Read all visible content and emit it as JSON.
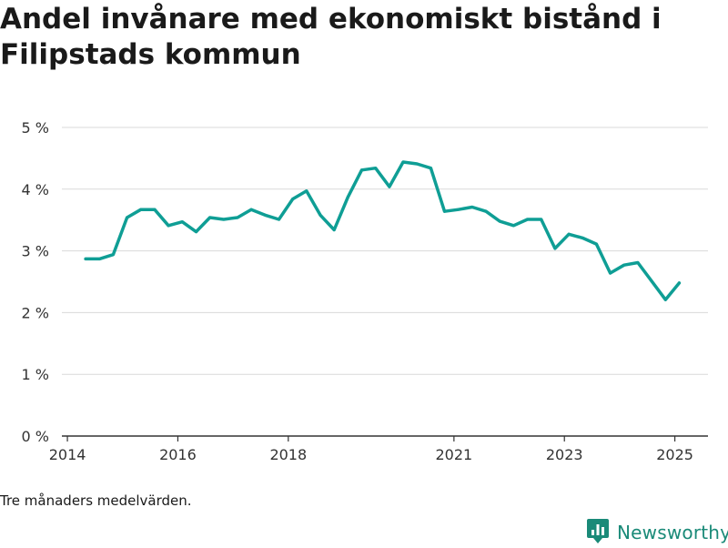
{
  "title": "Andel invånare med ekonomiskt bistånd i Filipstads kommun",
  "note": "Tre månaders medelvärden.",
  "brand": {
    "name": "Newsworthy",
    "icon": "newsworthy-logo-icon",
    "color": "#1a8a78"
  },
  "colors": {
    "line": "#0f9e95",
    "grid": "#d9d9d9",
    "axis": "#333333"
  },
  "chart_data": {
    "type": "line",
    "title": "Andel invånare med ekonomiskt bistånd i Filipstads kommun",
    "xlabel": "",
    "ylabel": "",
    "ylim": [
      0,
      5
    ],
    "y_ticks": [
      0,
      1,
      2,
      3,
      4,
      5
    ],
    "y_tick_labels": [
      "0 %",
      "1 %",
      "2 %",
      "3 %",
      "4 %",
      "5 %"
    ],
    "x_range": [
      2013.9,
      2025.6
    ],
    "x_ticks": [
      2014,
      2016,
      2018,
      2021,
      2023,
      2025
    ],
    "x_tick_labels": [
      "2014",
      "2016",
      "2018",
      "2021",
      "2023",
      "2025"
    ],
    "grid": true,
    "legend": "none",
    "series": [
      {
        "name": "",
        "points": [
          [
            2014.33,
            2.87
          ],
          [
            2014.58,
            2.87
          ],
          [
            2014.83,
            2.94
          ],
          [
            2015.08,
            3.54
          ],
          [
            2015.33,
            3.67
          ],
          [
            2015.58,
            3.67
          ],
          [
            2015.83,
            3.41
          ],
          [
            2016.08,
            3.47
          ],
          [
            2016.33,
            3.31
          ],
          [
            2016.58,
            3.54
          ],
          [
            2016.83,
            3.51
          ],
          [
            2017.08,
            3.54
          ],
          [
            2017.33,
            3.67
          ],
          [
            2017.58,
            3.58
          ],
          [
            2017.83,
            3.51
          ],
          [
            2018.08,
            3.84
          ],
          [
            2018.33,
            3.97
          ],
          [
            2018.58,
            3.58
          ],
          [
            2018.83,
            3.34
          ],
          [
            2019.08,
            3.87
          ],
          [
            2019.33,
            4.31
          ],
          [
            2019.58,
            4.34
          ],
          [
            2019.83,
            4.04
          ],
          [
            2020.08,
            4.44
          ],
          [
            2020.33,
            4.41
          ],
          [
            2020.58,
            4.34
          ],
          [
            2020.83,
            3.64
          ],
          [
            2021.08,
            3.67
          ],
          [
            2021.33,
            3.71
          ],
          [
            2021.58,
            3.64
          ],
          [
            2021.83,
            3.48
          ],
          [
            2022.08,
            3.41
          ],
          [
            2022.33,
            3.51
          ],
          [
            2022.58,
            3.51
          ],
          [
            2022.83,
            3.04
          ],
          [
            2023.08,
            3.27
          ],
          [
            2023.33,
            3.21
          ],
          [
            2023.58,
            3.11
          ],
          [
            2023.83,
            2.64
          ],
          [
            2024.08,
            2.77
          ],
          [
            2024.33,
            2.81
          ],
          [
            2024.58,
            2.51
          ],
          [
            2024.83,
            2.21
          ],
          [
            2025.08,
            2.48
          ]
        ]
      }
    ]
  }
}
